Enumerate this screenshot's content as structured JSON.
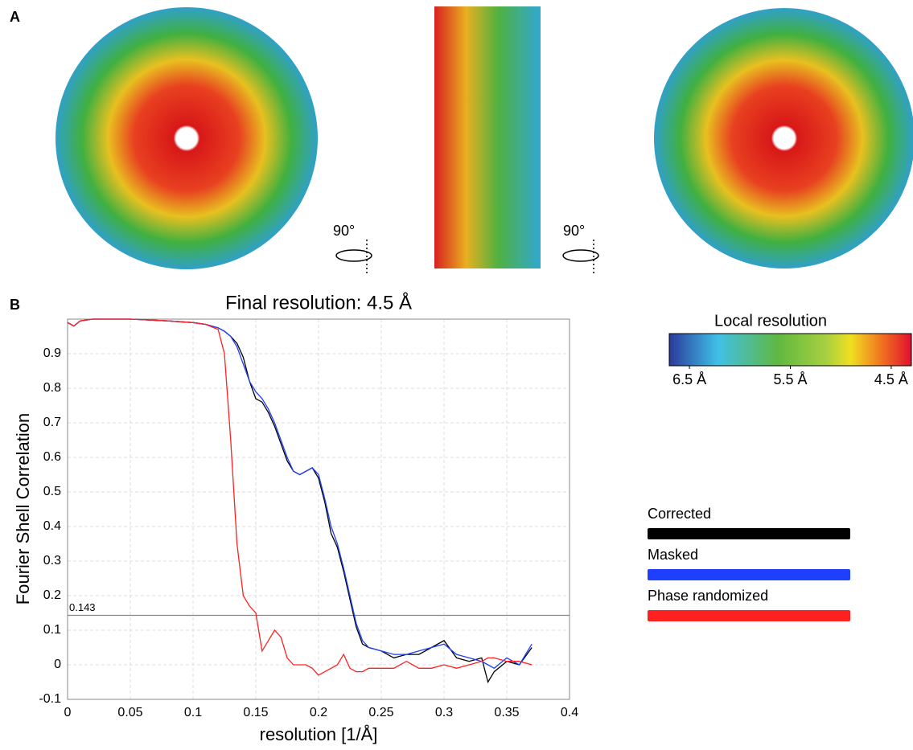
{
  "figure": {
    "panel_labels": [
      "A",
      "B"
    ],
    "rotation_labels": [
      "90°",
      "90°"
    ],
    "colorbar": {
      "title": "Local resolution",
      "lim": [
        6.7,
        4.3
      ],
      "ticks": [
        {
          "value": 6.5,
          "label": "6.5 Å"
        },
        {
          "value": 5.5,
          "label": "5.5 Å"
        },
        {
          "value": 4.5,
          "label": "4.5 Å"
        }
      ]
    }
  },
  "chart_data": {
    "type": "line",
    "title": "Final resolution: 4.5 Å",
    "xlabel": "resolution [1/Å]",
    "ylabel": "Fourier Shell Correlation",
    "x": [
      0,
      0.005,
      0.01,
      0.02,
      0.05,
      0.08,
      0.1,
      0.11,
      0.12,
      0.125,
      0.13,
      0.135,
      0.14,
      0.145,
      0.15,
      0.155,
      0.16,
      0.165,
      0.17,
      0.175,
      0.18,
      0.185,
      0.19,
      0.195,
      0.2,
      0.205,
      0.21,
      0.215,
      0.22,
      0.225,
      0.23,
      0.235,
      0.24,
      0.25,
      0.26,
      0.27,
      0.28,
      0.29,
      0.3,
      0.31,
      0.32,
      0.33,
      0.335,
      0.34,
      0.35,
      0.36,
      0.37
    ],
    "series": [
      {
        "name": "Corrected",
        "color": "#000000",
        "values": [
          0.99,
          0.98,
          0.995,
          1.0,
          1.0,
          0.995,
          0.99,
          0.985,
          0.975,
          0.965,
          0.95,
          0.93,
          0.89,
          0.82,
          0.77,
          0.76,
          0.73,
          0.69,
          0.64,
          0.59,
          0.56,
          0.55,
          0.56,
          0.57,
          0.54,
          0.47,
          0.38,
          0.34,
          0.27,
          0.19,
          0.11,
          0.06,
          0.05,
          0.04,
          0.02,
          0.03,
          0.03,
          0.05,
          0.07,
          0.02,
          0.01,
          0.02,
          -0.05,
          -0.02,
          0.01,
          0.0,
          0.05
        ]
      },
      {
        "name": "Masked",
        "color": "#1f3fff",
        "values": [
          0.99,
          0.98,
          0.995,
          1.0,
          1.0,
          0.995,
          0.99,
          0.985,
          0.975,
          0.965,
          0.95,
          0.92,
          0.87,
          0.82,
          0.79,
          0.77,
          0.74,
          0.7,
          0.65,
          0.6,
          0.56,
          0.55,
          0.56,
          0.57,
          0.55,
          0.48,
          0.4,
          0.35,
          0.28,
          0.2,
          0.12,
          0.07,
          0.05,
          0.04,
          0.03,
          0.03,
          0.04,
          0.05,
          0.06,
          0.03,
          0.02,
          0.01,
          0.0,
          -0.01,
          0.02,
          0.0,
          0.06
        ]
      },
      {
        "name": "Phase randomized",
        "color": "#ff2020",
        "values": [
          0.99,
          0.98,
          0.995,
          1.0,
          1.0,
          0.995,
          0.99,
          0.985,
          0.97,
          0.9,
          0.65,
          0.35,
          0.2,
          0.17,
          0.15,
          0.04,
          0.07,
          0.1,
          0.08,
          0.02,
          0.0,
          0.0,
          0.0,
          -0.01,
          -0.03,
          -0.02,
          -0.01,
          0.0,
          0.03,
          -0.01,
          -0.02,
          -0.02,
          -0.01,
          -0.01,
          -0.01,
          0.01,
          -0.01,
          -0.01,
          0.0,
          -0.01,
          0.0,
          0.01,
          0.02,
          0.02,
          0.01,
          0.01,
          0.0
        ]
      }
    ],
    "threshold": 0.143,
    "xlim": [
      0,
      0.4
    ],
    "ylim": [
      -0.1,
      1.0
    ],
    "xticks": [
      0,
      0.05,
      0.1,
      0.15,
      0.2,
      0.25,
      0.3,
      0.35,
      0.4
    ],
    "yticks": [
      -0.1,
      0,
      0.1,
      0.2,
      0.3,
      0.4,
      0.5,
      0.6,
      0.7,
      0.8,
      0.9
    ],
    "grid": true,
    "legend": "right"
  }
}
